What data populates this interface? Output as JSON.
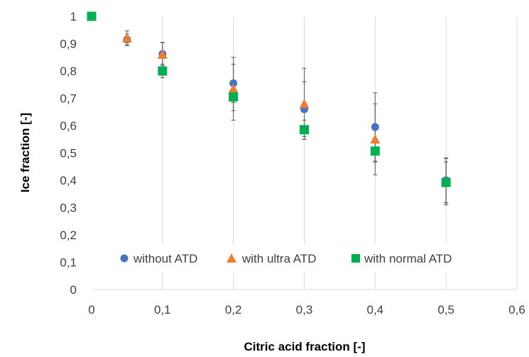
{
  "chart_data": {
    "type": "scatter",
    "xlabel": "Citric acid fraction [-]",
    "ylabel": "Ice fraction [-]",
    "xlim": [
      0,
      0.6
    ],
    "ylim": [
      0,
      1
    ],
    "x_ticks": [
      0,
      0.1,
      0.2,
      0.3,
      0.4,
      0.5,
      0.6
    ],
    "x_tick_labels": [
      "0",
      "0,1",
      "0,2",
      "0,3",
      "0,4",
      "0,5",
      "0,6"
    ],
    "y_ticks": [
      0,
      0.1,
      0.2,
      0.3,
      0.4,
      0.5,
      0.6,
      0.7,
      0.8,
      0.9,
      1
    ],
    "y_tick_labels": [
      "0",
      "0,1",
      "0,2",
      "0,3",
      "0,4",
      "0,5",
      "0,6",
      "0,7",
      "0,8",
      "0,9",
      "1"
    ],
    "grid": {
      "vertical": true,
      "horizontal": false
    },
    "legend_position": "bottom-inside",
    "series": [
      {
        "name": "without ATD",
        "marker": "circle",
        "color": "#4472C4",
        "points": [
          {
            "x": 0.0,
            "y": 1.0
          },
          {
            "x": 0.05,
            "y": 0.915,
            "err": 0.02
          },
          {
            "x": 0.1,
            "y": 0.862,
            "err": 0.042
          },
          {
            "x": 0.2,
            "y": 0.755,
            "err": 0.07
          },
          {
            "x": 0.3,
            "y": 0.66,
            "err": 0.1
          },
          {
            "x": 0.4,
            "y": 0.595,
            "err": 0.125
          },
          {
            "x": 0.5,
            "y": 0.4,
            "err": 0.082
          }
        ]
      },
      {
        "name": "with ultra ATD",
        "marker": "triangle",
        "color": "#ED7D31",
        "points": [
          {
            "x": 0.0,
            "y": 1.0
          },
          {
            "x": 0.05,
            "y": 0.92,
            "err": 0.027
          },
          {
            "x": 0.1,
            "y": 0.86,
            "err": 0.045
          },
          {
            "x": 0.2,
            "y": 0.735,
            "err": 0.115
          },
          {
            "x": 0.3,
            "y": 0.68,
            "err": 0.13
          },
          {
            "x": 0.4,
            "y": 0.55,
            "err": 0.13
          },
          {
            "x": 0.5,
            "y": 0.395,
            "err": 0.085
          }
        ]
      },
      {
        "name": "with normal ATD",
        "marker": "square",
        "color": "#00B050",
        "points": [
          {
            "x": 0.0,
            "y": 1.0
          },
          {
            "x": 0.1,
            "y": 0.8,
            "err": 0.025
          },
          {
            "x": 0.2,
            "y": 0.705,
            "err": 0.05
          },
          {
            "x": 0.3,
            "y": 0.585,
            "err": 0.035
          },
          {
            "x": 0.4,
            "y": 0.507,
            "err": 0.04
          },
          {
            "x": 0.5,
            "y": 0.392,
            "err": 0.075
          }
        ]
      }
    ]
  }
}
